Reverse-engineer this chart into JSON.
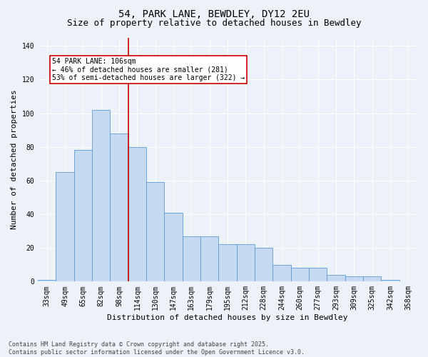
{
  "title1": "54, PARK LANE, BEWDLEY, DY12 2EU",
  "title2": "Size of property relative to detached houses in Bewdley",
  "xlabel": "Distribution of detached houses by size in Bewdley",
  "ylabel": "Number of detached properties",
  "categories": [
    "33sqm",
    "49sqm",
    "65sqm",
    "82sqm",
    "98sqm",
    "114sqm",
    "130sqm",
    "147sqm",
    "163sqm",
    "179sqm",
    "195sqm",
    "212sqm",
    "228sqm",
    "244sqm",
    "260sqm",
    "277sqm",
    "293sqm",
    "309sqm",
    "325sqm",
    "342sqm",
    "358sqm"
  ],
  "values": [
    1,
    65,
    78,
    102,
    88,
    80,
    59,
    41,
    27,
    27,
    22,
    22,
    20,
    10,
    8,
    8,
    4,
    3,
    3,
    1,
    0
  ],
  "bar_color": "#c5d9f0",
  "bar_edge_color": "#5b9bd5",
  "vline_x": 4.5,
  "vline_color": "#cc0000",
  "annotation_text": "54 PARK LANE: 106sqm\n← 46% of detached houses are smaller (281)\n53% of semi-detached houses are larger (322) →",
  "annotation_box_color": "#cc0000",
  "ylim": [
    0,
    145
  ],
  "yticks": [
    0,
    20,
    40,
    60,
    80,
    100,
    120,
    140
  ],
  "footer": "Contains HM Land Registry data © Crown copyright and database right 2025.\nContains public sector information licensed under the Open Government Licence v3.0.",
  "bg_color": "#edf2f9",
  "plot_bg_color": "#edf2f9",
  "grid_color": "#ffffff",
  "title_fontsize": 10,
  "subtitle_fontsize": 9,
  "tick_fontsize": 7,
  "ylabel_fontsize": 8,
  "xlabel_fontsize": 8,
  "footer_fontsize": 6,
  "annotation_fontsize": 7
}
